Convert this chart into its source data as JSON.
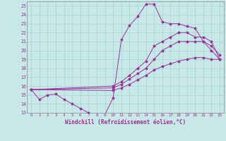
{
  "bg_color": "#c8e8e8",
  "grid_color": "#a8d8d8",
  "line_color": "#993399",
  "xlim": [
    -0.5,
    23.5
  ],
  "ylim": [
    13,
    25.5
  ],
  "xticks": [
    0,
    1,
    2,
    3,
    4,
    5,
    6,
    7,
    8,
    9,
    10,
    11,
    12,
    13,
    14,
    15,
    16,
    17,
    18,
    19,
    20,
    21,
    22,
    23
  ],
  "yticks": [
    13,
    14,
    15,
    16,
    17,
    18,
    19,
    20,
    21,
    22,
    23,
    24,
    25
  ],
  "xlabel": "Windchill (Refroidissement éolien,°C)",
  "line1_x": [
    0,
    1,
    2,
    3,
    4,
    5,
    6,
    7,
    8,
    9,
    10,
    11,
    12,
    13,
    14,
    15,
    16,
    17,
    18,
    19,
    20,
    21,
    22,
    23
  ],
  "line1_y": [
    15.6,
    14.5,
    15.0,
    15.1,
    14.5,
    14.0,
    13.5,
    13.0,
    12.8,
    12.8,
    14.7,
    21.2,
    22.8,
    23.8,
    25.2,
    25.2,
    23.2,
    23.0,
    23.0,
    22.7,
    22.5,
    21.0,
    20.0,
    19.0
  ],
  "line2_x": [
    0,
    10,
    11,
    12,
    13,
    14,
    15,
    16,
    17,
    18,
    19,
    20,
    21,
    22,
    23
  ],
  "line2_y": [
    15.6,
    16.0,
    16.5,
    17.2,
    18.0,
    18.8,
    20.5,
    21.0,
    21.5,
    22.0,
    22.0,
    21.5,
    21.5,
    21.0,
    19.0
  ],
  "line3_x": [
    0,
    10,
    11,
    12,
    13,
    14,
    15,
    16,
    17,
    18,
    19,
    20,
    21,
    22,
    23
  ],
  "line3_y": [
    15.6,
    15.8,
    16.2,
    16.8,
    17.4,
    18.0,
    19.0,
    20.0,
    20.5,
    21.0,
    21.0,
    21.0,
    21.0,
    20.5,
    19.5
  ],
  "line4_x": [
    0,
    10,
    11,
    12,
    13,
    14,
    15,
    16,
    17,
    18,
    19,
    20,
    21,
    22,
    23
  ],
  "line4_y": [
    15.6,
    15.5,
    15.8,
    16.2,
    16.7,
    17.2,
    17.8,
    18.2,
    18.5,
    18.8,
    19.0,
    19.2,
    19.2,
    19.0,
    19.0
  ]
}
